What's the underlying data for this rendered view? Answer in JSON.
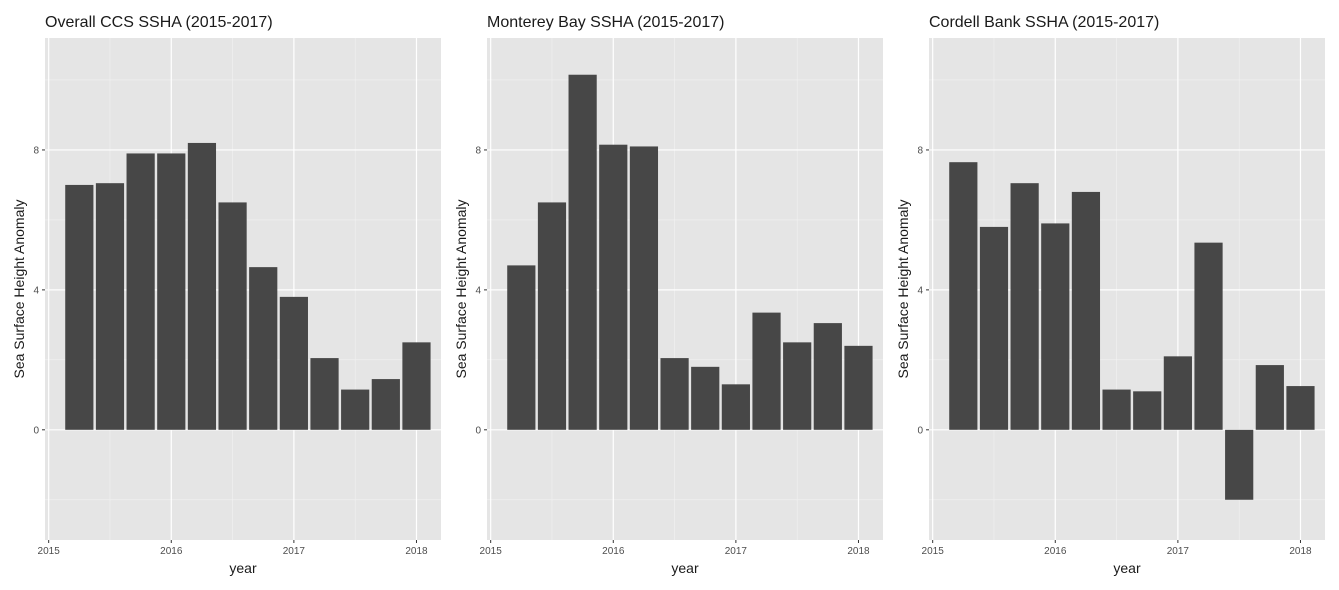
{
  "chart_data": [
    {
      "type": "bar",
      "title": "Overall CCS SSHA (2015-2017)",
      "xlabel": "year",
      "ylabel": "Sea Surface Height Anomaly",
      "xlim": [
        2014.97,
        2018.2
      ],
      "ylim": [
        -3.15,
        11.2
      ],
      "xticks": [
        2015,
        2016,
        2017,
        2018
      ],
      "yticks": [
        0,
        4,
        8
      ],
      "grid": true,
      "bar_width": 0.23,
      "color": "#474747",
      "x": [
        2015.25,
        2015.5,
        2015.75,
        2016.0,
        2016.25,
        2016.5,
        2016.75,
        2017.0,
        2017.25,
        2017.5,
        2017.75,
        2018.0
      ],
      "values": [
        7.0,
        7.05,
        7.9,
        7.9,
        8.2,
        6.5,
        4.65,
        3.8,
        2.05,
        1.15,
        1.45,
        2.5
      ]
    },
    {
      "type": "bar",
      "title": "Monterey Bay SSHA (2015-2017)",
      "xlabel": "year",
      "ylabel": "Sea Surface Height Anomaly",
      "xlim": [
        2014.97,
        2018.2
      ],
      "ylim": [
        -3.15,
        11.2
      ],
      "xticks": [
        2015,
        2016,
        2017,
        2018
      ],
      "yticks": [
        0,
        4,
        8
      ],
      "grid": true,
      "bar_width": 0.23,
      "color": "#474747",
      "x": [
        2015.25,
        2015.5,
        2015.75,
        2016.0,
        2016.25,
        2016.5,
        2016.75,
        2017.0,
        2017.25,
        2017.5,
        2017.75,
        2018.0
      ],
      "values": [
        4.7,
        6.5,
        10.15,
        8.15,
        8.1,
        2.05,
        1.8,
        1.3,
        3.35,
        2.5,
        3.05,
        2.4
      ]
    },
    {
      "type": "bar",
      "title": "Cordell Bank SSHA (2015-2017)",
      "xlabel": "year",
      "ylabel": "Sea Surface Height Anomaly",
      "xlim": [
        2014.97,
        2018.2
      ],
      "ylim": [
        -3.15,
        11.2
      ],
      "xticks": [
        2015,
        2016,
        2017,
        2018
      ],
      "yticks": [
        0,
        4,
        8
      ],
      "grid": true,
      "bar_width": 0.23,
      "color": "#474747",
      "x": [
        2015.25,
        2015.5,
        2015.75,
        2016.0,
        2016.25,
        2016.5,
        2016.75,
        2017.0,
        2017.25,
        2017.5,
        2017.75,
        2018.0
      ],
      "values": [
        7.65,
        5.8,
        7.05,
        5.9,
        6.8,
        1.15,
        1.1,
        2.1,
        5.35,
        -2.0,
        1.85,
        1.25
      ]
    }
  ]
}
